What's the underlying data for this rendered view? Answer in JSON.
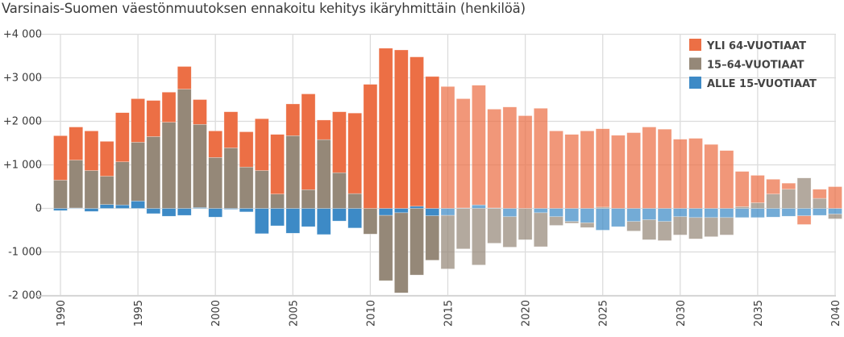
{
  "chart_data": {
    "type": "bar",
    "stacked": true,
    "title": "Varsinais-Suomen väestönmuutoksen ennakoitu kehitys ikäryhmittäin (henkilöä)",
    "xlabel": "",
    "ylabel": "",
    "ylim": [
      -2000,
      4000
    ],
    "yticks": [
      4000,
      3000,
      2000,
      1000,
      0,
      -1000,
      -2000
    ],
    "ytick_labels": [
      "+4 000",
      "+3 000",
      "+2 000",
      "+1 000",
      "0",
      "-1 000",
      "-2 000"
    ],
    "xtick_labels": [
      "1990",
      "1995",
      "2000",
      "2005",
      "2010",
      "2015",
      "2020",
      "2025",
      "2030",
      "2035",
      "2040"
    ],
    "grid": true,
    "legend_position": "top-right",
    "projection_start": 2015,
    "x": [
      1990,
      1991,
      1992,
      1993,
      1994,
      1995,
      1996,
      1997,
      1998,
      1999,
      2000,
      2001,
      2002,
      2003,
      2004,
      2005,
      2006,
      2007,
      2008,
      2009,
      2010,
      2011,
      2012,
      2013,
      2014,
      2015,
      2016,
      2017,
      2018,
      2019,
      2020,
      2021,
      2022,
      2023,
      2024,
      2025,
      2026,
      2027,
      2028,
      2029,
      2030,
      2031,
      2032,
      2033,
      2034,
      2035,
      2036,
      2037,
      2038,
      2039,
      2040
    ],
    "series": [
      {
        "name": "ALLE 15-VUOTIAAT",
        "color": "#3d8ac6",
        "values": [
          -50,
          10,
          -70,
          90,
          80,
          170,
          -120,
          -180,
          -160,
          20,
          -200,
          -20,
          -80,
          -580,
          -400,
          -570,
          -420,
          -600,
          -290,
          -450,
          0,
          -160,
          -100,
          50,
          -170,
          -160,
          10,
          80,
          10,
          -190,
          0,
          -100,
          -190,
          -300,
          -330,
          -500,
          -420,
          -300,
          -260,
          -300,
          -190,
          -210,
          -210,
          -210,
          -210,
          -210,
          -200,
          -180,
          -170,
          -160,
          -130
        ]
      },
      {
        "name": "15–64-VUOTIAAT",
        "color": "#958878",
        "values": [
          650,
          1100,
          870,
          650,
          990,
          1350,
          1650,
          1980,
          2740,
          1910,
          1170,
          1390,
          950,
          870,
          330,
          1670,
          430,
          1580,
          820,
          340,
          -590,
          -1500,
          -1840,
          -1530,
          -1020,
          -1230,
          -930,
          -1300,
          -800,
          -700,
          -720,
          -780,
          -200,
          -40,
          -110,
          30,
          0,
          -220,
          -460,
          -440,
          -420,
          -490,
          -440,
          -400,
          40,
          130,
          330,
          440,
          700,
          230,
          -110
        ]
      },
      {
        "name": "YLI 64-VUOTIAAT",
        "color": "#ec6f45",
        "values": [
          1020,
          760,
          910,
          800,
          1130,
          1000,
          830,
          690,
          520,
          570,
          610,
          830,
          810,
          1190,
          1370,
          730,
          2200,
          450,
          1400,
          1850,
          2850,
          3680,
          3640,
          3430,
          3030,
          2800,
          2510,
          2750,
          2270,
          2330,
          2130,
          2300,
          1780,
          1700,
          1780,
          1800,
          1680,
          1740,
          1870,
          1820,
          1590,
          1610,
          1470,
          1330,
          810,
          630,
          340,
          140,
          -200,
          210,
          500
        ]
      }
    ]
  }
}
